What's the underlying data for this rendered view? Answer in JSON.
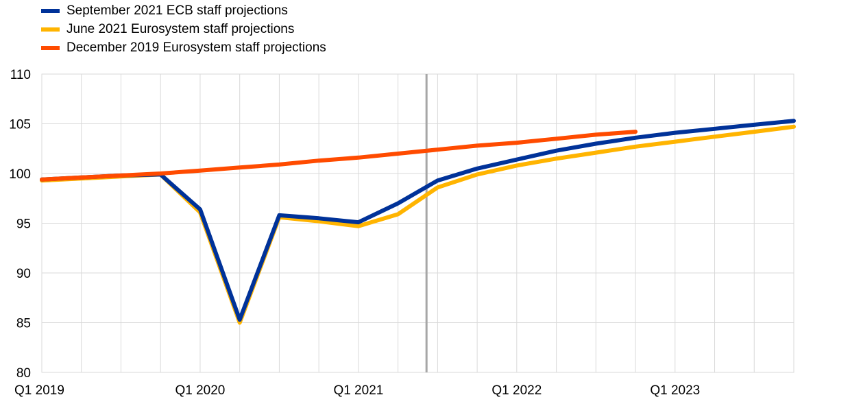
{
  "chart_data": {
    "type": "line",
    "title": "",
    "xlabel": "",
    "ylabel": "",
    "ylim": [
      80,
      110
    ],
    "yticks": [
      80,
      85,
      90,
      95,
      100,
      105,
      110
    ],
    "quarters": [
      "2019Q1",
      "2019Q2",
      "2019Q3",
      "2019Q4",
      "2020Q1",
      "2020Q2",
      "2020Q3",
      "2020Q4",
      "2021Q1",
      "2021Q2",
      "2021Q3",
      "2021Q4",
      "2022Q1",
      "2022Q2",
      "2022Q3",
      "2022Q4",
      "2023Q1",
      "2023Q2",
      "2023Q3",
      "2023Q4"
    ],
    "xtick_labels": [
      {
        "quarter": "2019Q1",
        "label": "Q1 2019"
      },
      {
        "quarter": "2020Q1",
        "label": "Q1 2020"
      },
      {
        "quarter": "2021Q1",
        "label": "Q1 2021"
      },
      {
        "quarter": "2022Q1",
        "label": "Q1 2022"
      },
      {
        "quarter": "2023Q1",
        "label": "Q1 2023"
      }
    ],
    "projection_marker": "2021Q2/2021Q3",
    "grid": true,
    "legend_position": "top-left",
    "series": [
      {
        "name": "September 2021 ECB staff projections",
        "color": "#003299",
        "values": [
          99.4,
          99.6,
          99.8,
          99.9,
          96.4,
          85.3,
          95.8,
          95.5,
          95.1,
          97.0,
          99.3,
          100.5,
          101.4,
          102.3,
          103.0,
          103.6,
          104.1,
          104.5,
          104.9,
          105.3
        ]
      },
      {
        "name": "June 2021 Eurosystem staff projections",
        "color": "#FFB400",
        "values": [
          99.3,
          99.5,
          99.7,
          99.9,
          96.1,
          85.0,
          95.6,
          95.2,
          94.7,
          95.9,
          98.6,
          99.9,
          100.8,
          101.5,
          102.1,
          102.7,
          103.2,
          103.7,
          104.2,
          104.7
        ]
      },
      {
        "name": "December 2019 Eurosystem staff projections",
        "color": "#FF4B00",
        "values": [
          99.4,
          99.6,
          99.8,
          100.0,
          100.3,
          100.6,
          100.9,
          101.3,
          101.6,
          102.0,
          102.4,
          102.8,
          103.1,
          103.5,
          103.9,
          104.2,
          null,
          null,
          null,
          null
        ]
      }
    ]
  }
}
